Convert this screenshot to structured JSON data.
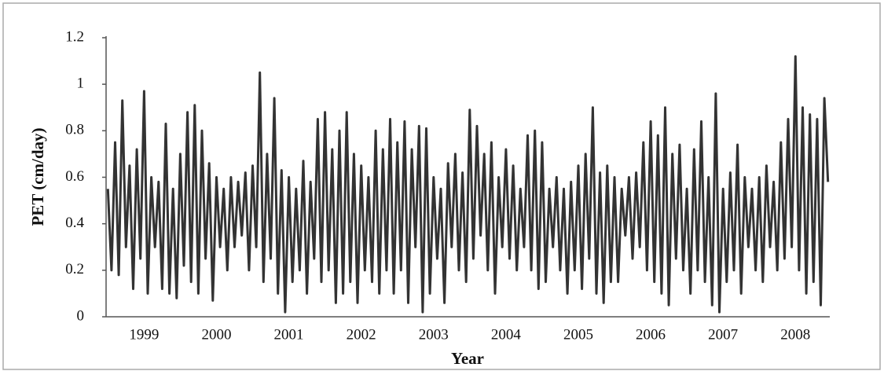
{
  "chart_data": {
    "type": "line",
    "x_label": "Year",
    "y_label": "PET (cm/day)",
    "color": "#333333",
    "ylim": [
      0,
      1.2
    ],
    "yticks": [
      0,
      0.2,
      0.4,
      0.6,
      0.8,
      1,
      1.2
    ],
    "categories": [
      null,
      null,
      null,
      null,
      null,
      null,
      null,
      null,
      null,
      null,
      "1999",
      null,
      null,
      null,
      null,
      null,
      null,
      null,
      null,
      null,
      null,
      null,
      null,
      null,
      null,
      null,
      null,
      null,
      null,
      null,
      "2000",
      null,
      null,
      null,
      null,
      null,
      null,
      null,
      null,
      null,
      null,
      null,
      null,
      null,
      null,
      null,
      null,
      null,
      null,
      null,
      "2001",
      null,
      null,
      null,
      null,
      null,
      null,
      null,
      null,
      null,
      null,
      null,
      null,
      null,
      null,
      null,
      null,
      null,
      null,
      null,
      "2002",
      null,
      null,
      null,
      null,
      null,
      null,
      null,
      null,
      null,
      null,
      null,
      null,
      null,
      null,
      null,
      null,
      null,
      null,
      null,
      "2003",
      null,
      null,
      null,
      null,
      null,
      null,
      null,
      null,
      null,
      null,
      null,
      null,
      null,
      null,
      null,
      null,
      null,
      null,
      null,
      "2004",
      null,
      null,
      null,
      null,
      null,
      null,
      null,
      null,
      null,
      null,
      null,
      null,
      null,
      null,
      null,
      null,
      null,
      null,
      null,
      "2005",
      null,
      null,
      null,
      null,
      null,
      null,
      null,
      null,
      null,
      null,
      null,
      null,
      null,
      null,
      null,
      null,
      null,
      null,
      null,
      "2006",
      null,
      null,
      null,
      null,
      null,
      null,
      null,
      null,
      null,
      null,
      null,
      null,
      null,
      null,
      null,
      null,
      null,
      null,
      null,
      "2007",
      null,
      null,
      null,
      null,
      null,
      null,
      null,
      null,
      null,
      null,
      null,
      null,
      null,
      null,
      null,
      null,
      null,
      null,
      null,
      "2008",
      null,
      null,
      null,
      null,
      null,
      null,
      null,
      null,
      null
    ],
    "values": [
      0.55,
      0.2,
      0.75,
      0.18,
      0.93,
      0.3,
      0.65,
      0.12,
      0.72,
      0.25,
      0.97,
      0.1,
      0.6,
      0.3,
      0.58,
      0.12,
      0.83,
      0.1,
      0.55,
      0.08,
      0.7,
      0.22,
      0.88,
      0.15,
      0.91,
      0.1,
      0.8,
      0.25,
      0.66,
      0.07,
      0.6,
      0.3,
      0.55,
      0.2,
      0.6,
      0.3,
      0.58,
      0.35,
      0.62,
      0.2,
      0.65,
      0.3,
      1.05,
      0.15,
      0.7,
      0.25,
      0.94,
      0.1,
      0.63,
      0.02,
      0.6,
      0.15,
      0.55,
      0.2,
      0.67,
      0.1,
      0.58,
      0.25,
      0.85,
      0.15,
      0.88,
      0.2,
      0.72,
      0.06,
      0.8,
      0.1,
      0.88,
      0.15,
      0.7,
      0.06,
      0.65,
      0.2,
      0.6,
      0.15,
      0.8,
      0.1,
      0.72,
      0.2,
      0.85,
      0.1,
      0.75,
      0.2,
      0.84,
      0.06,
      0.72,
      0.3,
      0.82,
      0.02,
      0.81,
      0.1,
      0.6,
      0.25,
      0.55,
      0.06,
      0.66,
      0.3,
      0.7,
      0.2,
      0.62,
      0.15,
      0.89,
      0.25,
      0.82,
      0.35,
      0.7,
      0.2,
      0.75,
      0.1,
      0.6,
      0.3,
      0.72,
      0.25,
      0.65,
      0.2,
      0.55,
      0.3,
      0.78,
      0.2,
      0.8,
      0.12,
      0.75,
      0.15,
      0.55,
      0.3,
      0.6,
      0.2,
      0.55,
      0.1,
      0.58,
      0.2,
      0.65,
      0.12,
      0.7,
      0.25,
      0.9,
      0.1,
      0.62,
      0.06,
      0.65,
      0.15,
      0.6,
      0.15,
      0.55,
      0.35,
      0.6,
      0.25,
      0.62,
      0.3,
      0.75,
      0.2,
      0.84,
      0.15,
      0.78,
      0.1,
      0.9,
      0.05,
      0.7,
      0.25,
      0.74,
      0.2,
      0.55,
      0.1,
      0.72,
      0.2,
      0.84,
      0.15,
      0.6,
      0.05,
      0.96,
      0.02,
      0.55,
      0.15,
      0.62,
      0.2,
      0.74,
      0.1,
      0.6,
      0.3,
      0.55,
      0.2,
      0.6,
      0.15,
      0.65,
      0.3,
      0.58,
      0.2,
      0.75,
      0.25,
      0.85,
      0.3,
      1.12,
      0.2,
      0.9,
      0.1,
      0.87,
      0.15,
      0.85,
      0.05,
      0.94,
      0.58
    ]
  }
}
